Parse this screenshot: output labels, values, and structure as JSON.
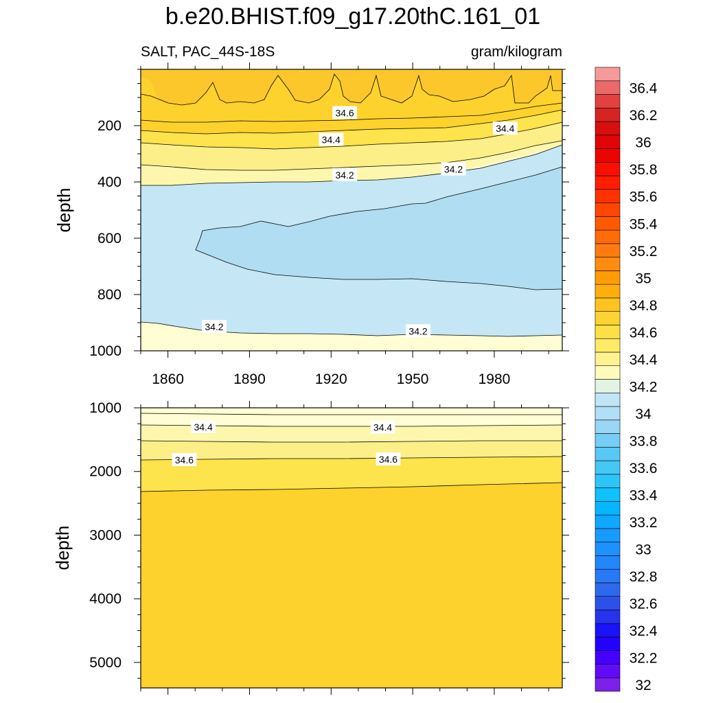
{
  "chart_data": {
    "type": "heatmap",
    "title": "b.e20.BHIST.f09_g17.20thC.161_01",
    "variable_label": "SALT, PAC_44S-18S",
    "units_label": "gram/kilogram",
    "xlabel": "",
    "ylabel": "depth",
    "x_range": [
      1850,
      2005
    ],
    "x_ticks": [
      "1860",
      "1890",
      "1920",
      "1950",
      "1980"
    ],
    "panels": [
      {
        "name": "upper",
        "ylim": [
          0,
          1000
        ],
        "y_reversed": true,
        "y_ticks": [
          "200",
          "400",
          "600",
          "800",
          "1000"
        ],
        "contour_labels": [
          {
            "text": "34.6",
            "x": 1925,
            "y": 155
          },
          {
            "text": "34.4",
            "x": 1920,
            "y": 250
          },
          {
            "text": "34.4",
            "x": 1984,
            "y": 210
          },
          {
            "text": "34.2",
            "x": 1925,
            "y": 375
          },
          {
            "text": "34.2",
            "x": 1965,
            "y": 355
          },
          {
            "text": "34.2",
            "x": 1877,
            "y": 915
          },
          {
            "text": "34.2",
            "x": 1952,
            "y": 930
          }
        ]
      },
      {
        "name": "lower",
        "ylim": [
          1000,
          5400
        ],
        "y_reversed": true,
        "y_ticks": [
          "1000",
          "2000",
          "3000",
          "4000",
          "5000"
        ],
        "contour_labels": [
          {
            "text": "34.4",
            "x": 1873,
            "y": 1300
          },
          {
            "text": "34.4",
            "x": 1939,
            "y": 1310
          },
          {
            "text": "34.6",
            "x": 1866,
            "y": 1820
          },
          {
            "text": "34.6",
            "x": 1941,
            "y": 1810
          }
        ]
      }
    ],
    "colorbar": {
      "labels": [
        "32",
        "32.2",
        "32.4",
        "32.6",
        "32.8",
        "33",
        "33.2",
        "33.4",
        "33.6",
        "33.8",
        "34",
        "34.2",
        "34.4",
        "34.6",
        "34.8",
        "35",
        "35.2",
        "35.4",
        "35.6",
        "35.8",
        "36",
        "36.2",
        "36.4"
      ],
      "min": 32,
      "max": 36.6,
      "step": 0.1
    }
  }
}
